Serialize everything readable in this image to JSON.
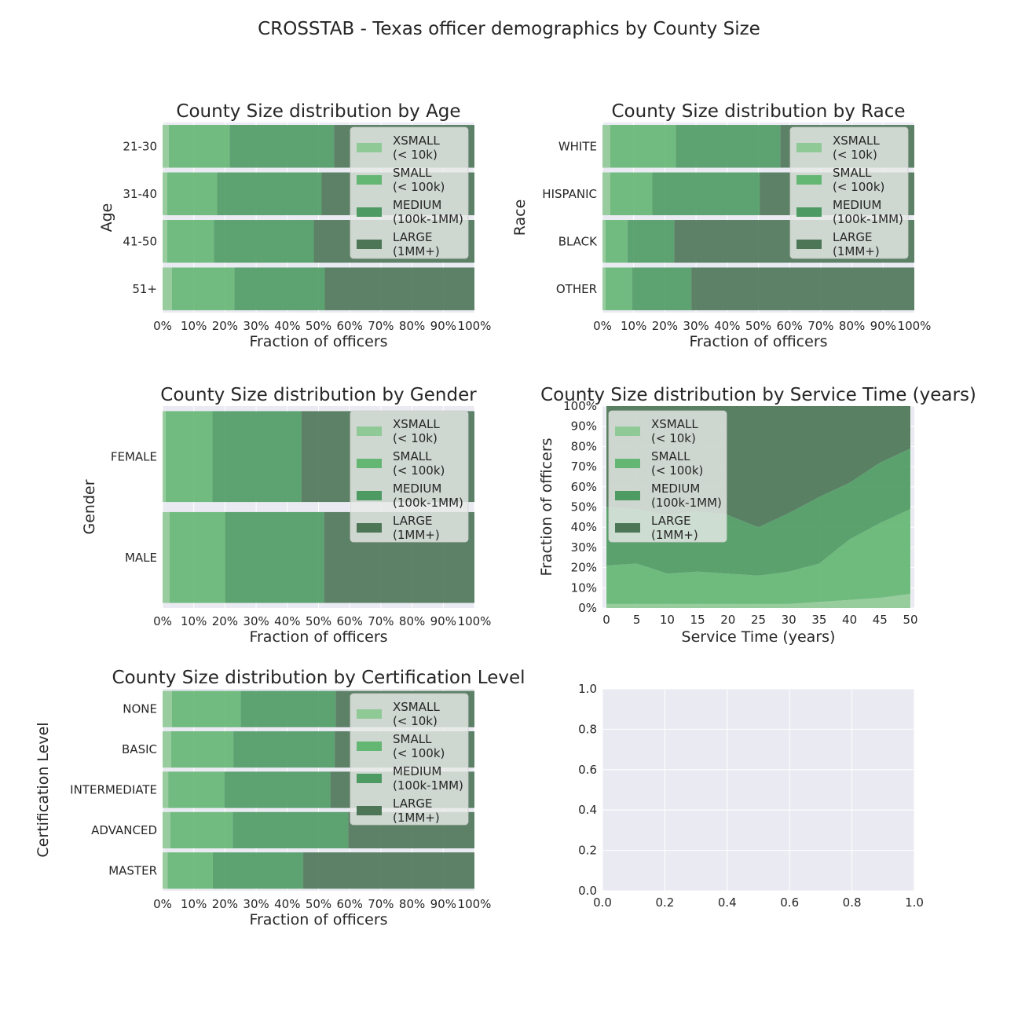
{
  "figure": {
    "title": "CROSSTAB - Texas officer demographics by County Size"
  },
  "legend": {
    "entries": [
      {
        "line1": "XSMALL",
        "line2": "(< 10k)",
        "color": "#8fc996"
      },
      {
        "line1": "SMALL",
        "line2": "(< 100k)",
        "color": "#64b673"
      },
      {
        "line1": "MEDIUM",
        "line2": "(100k-1MM)",
        "color": "#4e9a63"
      },
      {
        "line1": "LARGE",
        "line2": "(1MM+)",
        "color": "#4c7656"
      }
    ]
  },
  "colors": {
    "axes_bg": "#eaeaf2",
    "grid": "#ffffff",
    "xsmall": "#8fc996",
    "small": "#64b673",
    "medium": "#4e9a63",
    "large": "#4c7656"
  },
  "chart_data": [
    {
      "type": "bar",
      "orientation": "horizontal",
      "stacked": true,
      "title": "County Size distribution by Age",
      "xlabel": "Fraction of officers",
      "ylabel": "Age",
      "xlim": [
        0,
        1
      ],
      "xticks": [
        "0%",
        "10%",
        "20%",
        "30%",
        "40%",
        "50%",
        "60%",
        "70%",
        "80%",
        "90%",
        "100%"
      ],
      "legend_position": "upper right",
      "categories": [
        "21-30",
        "31-40",
        "41-50",
        "51+"
      ],
      "series": [
        {
          "name": "XSMALL (< 10k)",
          "values": [
            0.02,
            0.015,
            0.015,
            0.03
          ]
        },
        {
          "name": "SMALL (< 100k)",
          "values": [
            0.195,
            0.16,
            0.15,
            0.2
          ]
        },
        {
          "name": "MEDIUM (100k-1MM)",
          "values": [
            0.335,
            0.335,
            0.32,
            0.29
          ]
        },
        {
          "name": "LARGE (1MM+)",
          "values": [
            0.45,
            0.49,
            0.515,
            0.48
          ]
        }
      ]
    },
    {
      "type": "bar",
      "orientation": "horizontal",
      "stacked": true,
      "title": "County Size distribution by Race",
      "xlabel": "Fraction of officers",
      "ylabel": "Race",
      "xlim": [
        0,
        1
      ],
      "xticks": [
        "0%",
        "10%",
        "20%",
        "30%",
        "40%",
        "50%",
        "60%",
        "70%",
        "80%",
        "90%",
        "100%"
      ],
      "legend_position": "upper right",
      "categories": [
        "WHITE",
        "HISPANIC",
        "BLACK",
        "OTHER"
      ],
      "series": [
        {
          "name": "XSMALL (< 10k)",
          "values": [
            0.025,
            0.025,
            0.01,
            0.01
          ]
        },
        {
          "name": "SMALL (< 100k)",
          "values": [
            0.21,
            0.135,
            0.07,
            0.085
          ]
        },
        {
          "name": "MEDIUM (100k-1MM)",
          "values": [
            0.335,
            0.345,
            0.15,
            0.19
          ]
        },
        {
          "name": "LARGE (1MM+)",
          "values": [
            0.43,
            0.495,
            0.77,
            0.715
          ]
        }
      ]
    },
    {
      "type": "bar",
      "orientation": "horizontal",
      "stacked": true,
      "title": "County Size distribution by Gender",
      "xlabel": "Fraction of officers",
      "ylabel": "Gender",
      "xlim": [
        0,
        1
      ],
      "xticks": [
        "0%",
        "10%",
        "20%",
        "30%",
        "40%",
        "50%",
        "60%",
        "70%",
        "80%",
        "90%",
        "100%"
      ],
      "legend_position": "upper right",
      "categories": [
        "FEMALE",
        "MALE"
      ],
      "series": [
        {
          "name": "XSMALL (< 10k)",
          "values": [
            0.01,
            0.022
          ]
        },
        {
          "name": "SMALL (< 100k)",
          "values": [
            0.15,
            0.178
          ]
        },
        {
          "name": "MEDIUM (100k-1MM)",
          "values": [
            0.285,
            0.318
          ]
        },
        {
          "name": "LARGE (1MM+)",
          "values": [
            0.555,
            0.482
          ]
        }
      ]
    },
    {
      "type": "area",
      "stacked": true,
      "title": "County Size distribution by Service Time (years)",
      "xlabel": "Service Time (years)",
      "ylabel": "Fraction of officers",
      "xlim": [
        0,
        50
      ],
      "ylim": [
        0,
        1
      ],
      "xticks": [
        "0",
        "5",
        "10",
        "15",
        "20",
        "25",
        "30",
        "35",
        "40",
        "45",
        "50"
      ],
      "yticks": [
        "0%",
        "10%",
        "20%",
        "30%",
        "40%",
        "50%",
        "60%",
        "70%",
        "80%",
        "90%",
        "100%"
      ],
      "legend_position": "upper left",
      "x": [
        0,
        5,
        10,
        15,
        20,
        25,
        30,
        35,
        40,
        45,
        50
      ],
      "series": [
        {
          "name": "XSMALL (< 10k)",
          "values": [
            0.02,
            0.02,
            0.02,
            0.02,
            0.02,
            0.02,
            0.02,
            0.03,
            0.04,
            0.05,
            0.07
          ]
        },
        {
          "name": "SMALL (< 100k)",
          "values": [
            0.19,
            0.2,
            0.15,
            0.16,
            0.15,
            0.14,
            0.16,
            0.19,
            0.3,
            0.37,
            0.42
          ]
        },
        {
          "name": "MEDIUM (100k-1MM)",
          "values": [
            0.29,
            0.27,
            0.29,
            0.3,
            0.29,
            0.24,
            0.29,
            0.33,
            0.28,
            0.3,
            0.3
          ]
        },
        {
          "name": "LARGE (1MM+)",
          "values": [
            0.5,
            0.51,
            0.54,
            0.52,
            0.54,
            0.6,
            0.53,
            0.45,
            0.38,
            0.28,
            0.21
          ]
        }
      ]
    },
    {
      "type": "bar",
      "orientation": "horizontal",
      "stacked": true,
      "title": "County Size distribution by Certification Level",
      "xlabel": "Fraction of officers",
      "ylabel": "Certification Level",
      "xlim": [
        0,
        1
      ],
      "xticks": [
        "0%",
        "10%",
        "20%",
        "30%",
        "40%",
        "50%",
        "60%",
        "70%",
        "80%",
        "90%",
        "100%"
      ],
      "legend_position": "upper right",
      "categories": [
        "NONE",
        "BASIC",
        "INTERMEDIATE",
        "ADVANCED",
        "MASTER"
      ],
      "series": [
        {
          "name": "XSMALL (< 10k)",
          "values": [
            0.03,
            0.027,
            0.018,
            0.025,
            0.016
          ]
        },
        {
          "name": "SMALL (< 100k)",
          "values": [
            0.22,
            0.2,
            0.18,
            0.2,
            0.145
          ]
        },
        {
          "name": "MEDIUM (100k-1MM)",
          "values": [
            0.305,
            0.325,
            0.34,
            0.37,
            0.29
          ]
        },
        {
          "name": "LARGE (1MM+)",
          "values": [
            0.445,
            0.448,
            0.462,
            0.405,
            0.549
          ]
        }
      ]
    },
    {
      "type": "scatter",
      "title": "",
      "xlabel": "",
      "ylabel": "",
      "xlim": [
        0,
        1
      ],
      "ylim": [
        0,
        1
      ],
      "xticks": [
        "0.0",
        "0.2",
        "0.4",
        "0.6",
        "0.8",
        "1.0"
      ],
      "yticks": [
        "0.0",
        "0.2",
        "0.4",
        "0.6",
        "0.8",
        "1.0"
      ],
      "series": []
    }
  ]
}
